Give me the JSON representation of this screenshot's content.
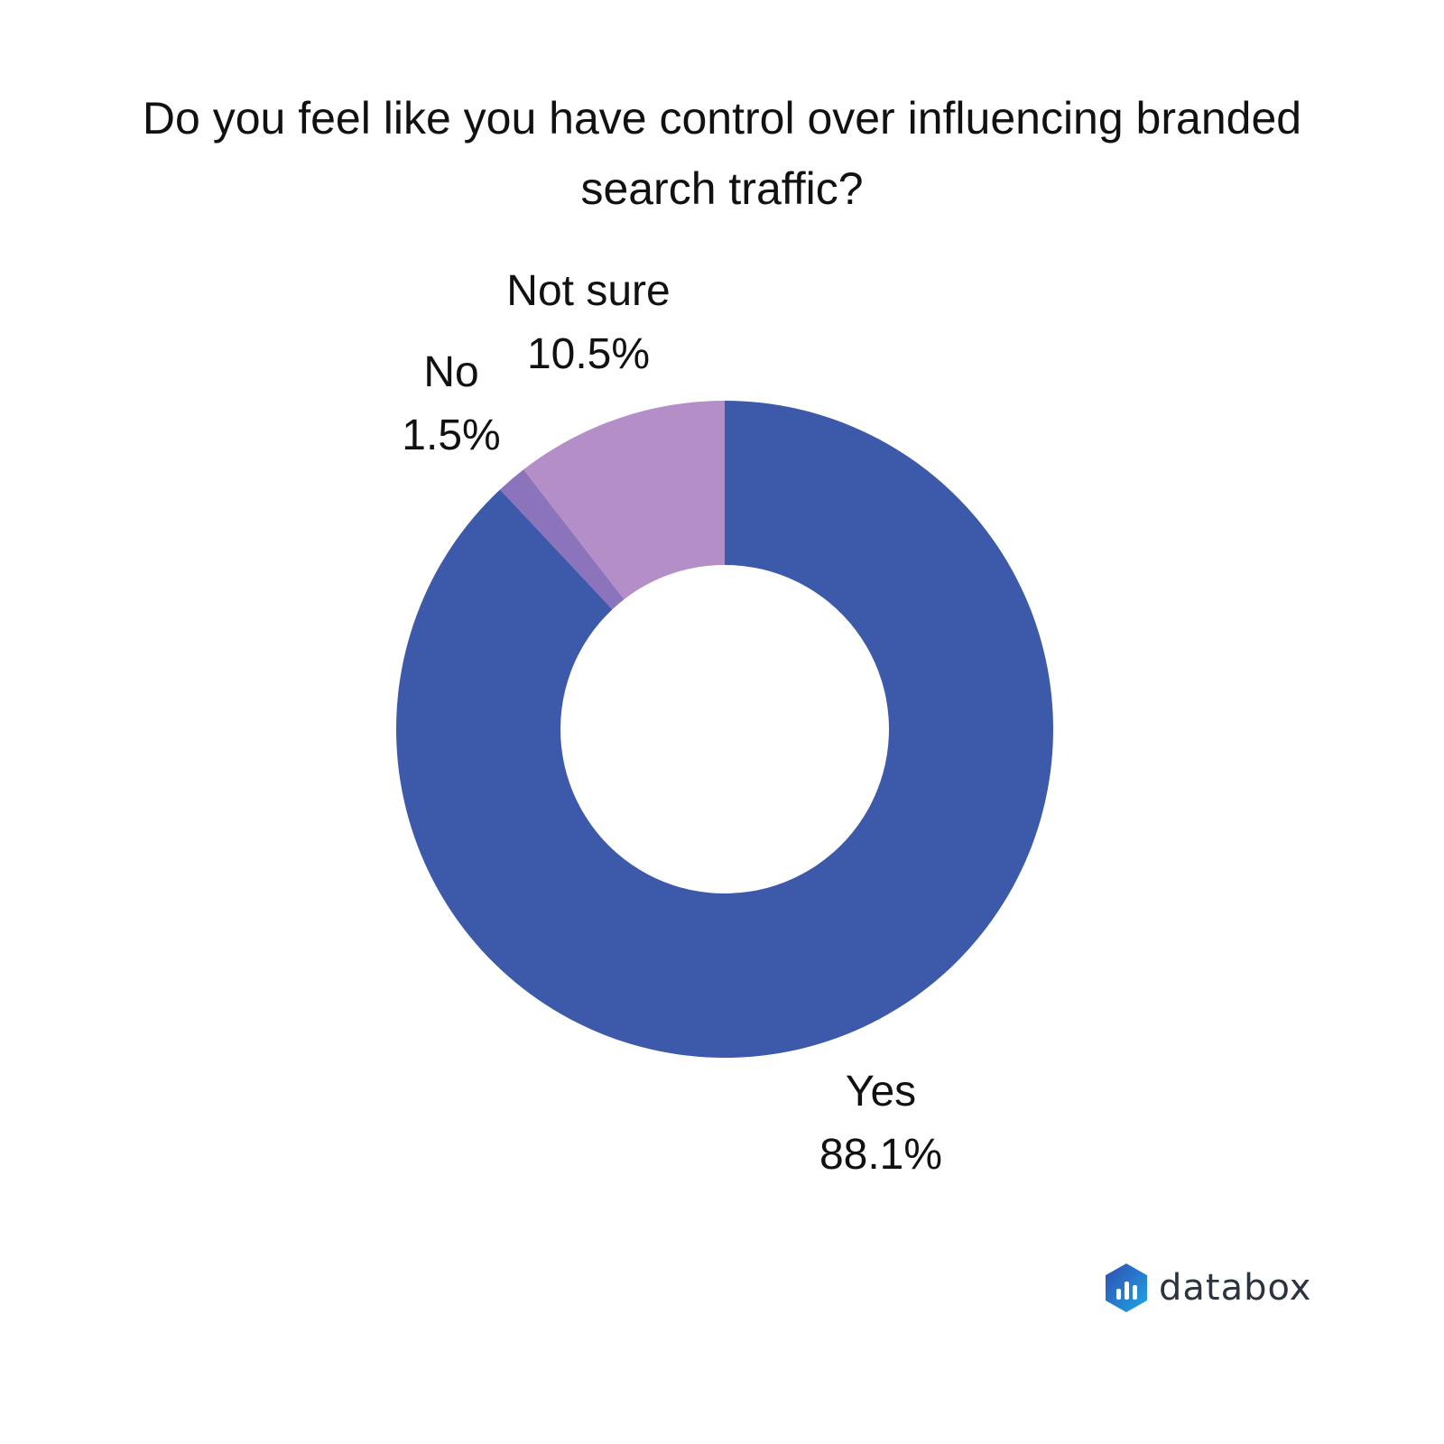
{
  "chart_data": {
    "type": "pie",
    "style": "donut",
    "title": "Do you feel like you have control over influencing branded search traffic?",
    "slices": [
      {
        "label": "Yes",
        "value": 88.1,
        "value_label": "88.1%",
        "color": "#3D59A9"
      },
      {
        "label": "No",
        "value": 1.5,
        "value_label": "1.5%",
        "color": "#8B74BC"
      },
      {
        "label": "Not sure",
        "value": 10.5,
        "value_label": "10.5%",
        "color": "#B48FC7"
      }
    ],
    "legend": "none",
    "data_labels": "outside"
  },
  "brand": {
    "name": "databox",
    "colors": [
      "#2F4DAF",
      "#1FA6E8"
    ]
  }
}
